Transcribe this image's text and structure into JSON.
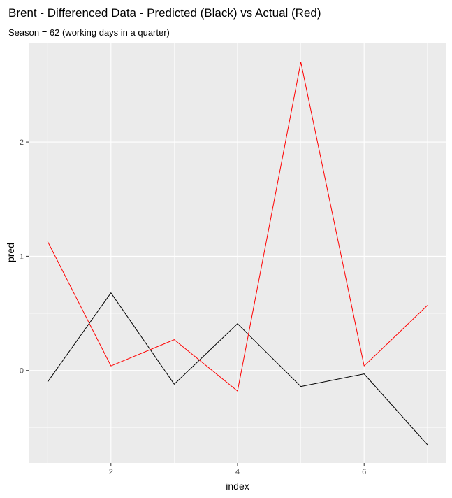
{
  "chart_data": {
    "type": "line",
    "title": "Brent - Differenced Data - Predicted (Black) vs Actual (Red)",
    "subtitle": "Season = 62 (working days in a quarter)",
    "xlabel": "index",
    "ylabel": "pred",
    "xlim": [
      0.7,
      7.3
    ],
    "ylim": [
      -0.81,
      2.87
    ],
    "x_ticks": [
      2,
      4,
      6
    ],
    "y_ticks": [
      0,
      1,
      2
    ],
    "x_tick_labels": [
      "2",
      "4",
      "6"
    ],
    "y_tick_labels": [
      "0",
      "1",
      "2"
    ],
    "grid": true,
    "x": [
      1,
      2,
      3,
      4,
      5,
      6,
      7
    ],
    "series": [
      {
        "color": "#000000",
        "values": [
          -0.1,
          0.68,
          -0.12,
          0.41,
          -0.14,
          -0.03,
          -0.65
        ]
      },
      {
        "color": "#ff0000",
        "values": [
          1.13,
          0.04,
          0.27,
          -0.18,
          2.7,
          0.04,
          0.57
        ]
      }
    ]
  },
  "colors": {
    "panel_background": "#ebebeb",
    "grid_major": "#ffffff",
    "tick_text": "#4d4d4d"
  }
}
